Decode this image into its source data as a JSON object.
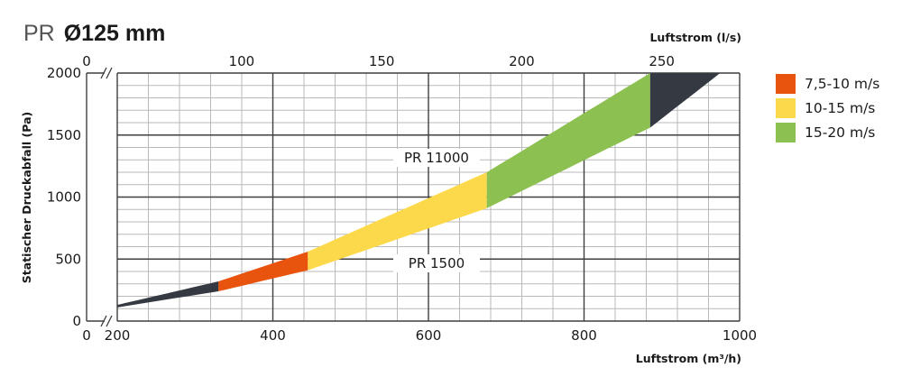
{
  "title": {
    "prefix": "PR",
    "size": "Ø125 mm"
  },
  "chart_data": {
    "type": "area",
    "title": "PR Ø125 mm",
    "xlabel": "Luftstrom (m³/h)",
    "x2label": "Luftstrom (l/s)",
    "ylabel": "Statischer Druckabfall (Pa)",
    "xlim": [
      200,
      1000
    ],
    "x2lim": [
      55.6,
      277.8
    ],
    "ylim": [
      0,
      2000
    ],
    "x_ticks": [
      "0",
      "200",
      "400",
      "600",
      "800",
      "1000"
    ],
    "x2_ticks": [
      "0",
      "100",
      "150",
      "200",
      "250"
    ],
    "y_ticks": [
      "0",
      "500",
      "1000",
      "1500",
      "2000"
    ],
    "grid": true,
    "curves": [
      {
        "name": "PR 11000",
        "x": [
          200,
          330,
          445,
          675,
          885,
          975
        ],
        "y": [
          130,
          320,
          560,
          1200,
          2000,
          2000
        ]
      },
      {
        "name": "PR 1500",
        "x": [
          200,
          330,
          445,
          675,
          885,
          975
        ],
        "y": [
          110,
          240,
          410,
          910,
          1560,
          2000
        ]
      }
    ],
    "bands": [
      {
        "name": "7,5-10 m/s",
        "x_range": [
          330,
          445
        ],
        "color": "#e8540e"
      },
      {
        "name": "10-15 m/s",
        "x_range": [
          445,
          675
        ],
        "color": "#fcd94a"
      },
      {
        "name": "15-20 m/s",
        "x_range": [
          675,
          885
        ],
        "color": "#8cc152"
      },
      {
        "name": "",
        "x_range": [
          200,
          330
        ],
        "color": "#353a42"
      },
      {
        "name": "",
        "x_range": [
          885,
          975
        ],
        "color": "#353a42"
      }
    ],
    "legend": [
      {
        "label": "7,5-10 m/s",
        "color": "#e8540e"
      },
      {
        "label": "10-15 m/s",
        "color": "#fcd94a"
      },
      {
        "label": "15-20 m/s",
        "color": "#8cc152"
      }
    ],
    "legend_position": "right"
  }
}
